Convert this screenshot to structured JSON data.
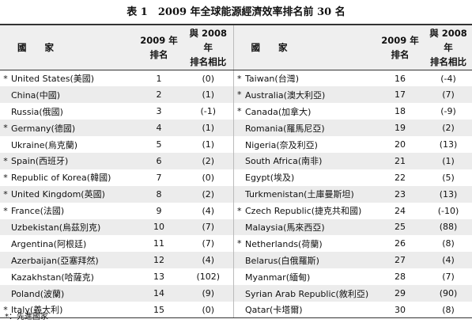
{
  "title": "表 1　2009 年全球能源經濟效率排名前 30 名",
  "table": {
    "header": {
      "country": "國　　家",
      "rank": [
        "2009 年",
        "排名"
      ],
      "change": [
        "與 2008 年",
        "排名相比"
      ]
    },
    "left": [
      {
        "mark": "*",
        "country": "United States(美國)",
        "rank": 1,
        "change": "(0)"
      },
      {
        "country": "China(中國)",
        "rank": 2,
        "change": "(1)"
      },
      {
        "country": "Russia(俄國)",
        "rank": 3,
        "change": "(-1)"
      },
      {
        "mark": "*",
        "country": "Germany(德國)",
        "rank": 4,
        "change": "(1)"
      },
      {
        "country": "Ukraine(烏克蘭)",
        "rank": 5,
        "change": "(1)"
      },
      {
        "mark": "*",
        "country": "Spain(西班牙)",
        "rank": 6,
        "change": "(2)"
      },
      {
        "mark": "*",
        "country": "Republic of Korea(韓國)",
        "rank": 7,
        "change": "(0)"
      },
      {
        "mark": "*",
        "country": "United Kingdom(英國)",
        "rank": 8,
        "change": "(2)"
      },
      {
        "mark": "*",
        "country": "France(法國)",
        "rank": 9,
        "change": "(4)"
      },
      {
        "country": "Uzbekistan(烏茲別克)",
        "rank": 10,
        "change": "(7)"
      },
      {
        "country": "Argentina(阿根廷)",
        "rank": 11,
        "change": "(7)"
      },
      {
        "country": "Azerbaijan(亞塞拜然)",
        "rank": 12,
        "change": "(4)"
      },
      {
        "country": "Kazakhstan(哈薩克)",
        "rank": 13,
        "change": "(102)"
      },
      {
        "country": "Poland(波蘭)",
        "rank": 14,
        "change": "(9)"
      },
      {
        "mark": "*",
        "country": "Italy(義大利)",
        "rank": 15,
        "change": "(0)"
      }
    ],
    "right": [
      {
        "mark": "*",
        "country": "Taiwan(台灣)",
        "rank": 16,
        "change": "(-4)"
      },
      {
        "mark": "*",
        "country": "Australia(澳大利亞)",
        "rank": 17,
        "change": "(7)"
      },
      {
        "mark": "*",
        "country": "Canada(加拿大)",
        "rank": 18,
        "change": "(-9)"
      },
      {
        "country": "Romania(羅馬尼亞)",
        "rank": 19,
        "change": "(2)"
      },
      {
        "country": "Nigeria(奈及利亞)",
        "rank": 20,
        "change": "(13)"
      },
      {
        "country": "South Africa(南非)",
        "rank": 21,
        "change": "(1)"
      },
      {
        "country": "Egypt(埃及)",
        "rank": 22,
        "change": "(5)"
      },
      {
        "country": "Turkmenistan(土庫曼斯坦)",
        "rank": 23,
        "change": "(13)"
      },
      {
        "mark": "*",
        "country": "Czech Republic(捷克共和國)",
        "rank": 24,
        "change": "(-10)"
      },
      {
        "country": "Malaysia(馬來西亞)",
        "rank": 25,
        "change": "(88)"
      },
      {
        "mark": "*",
        "country": "Netherlands(荷蘭)",
        "rank": 26,
        "change": "(8)"
      },
      {
        "country": "Belarus(白俄羅斯)",
        "rank": 27,
        "change": "(4)"
      },
      {
        "country": "Myanmar(緬甸)",
        "rank": 28,
        "change": "(7)"
      },
      {
        "country": "Syrian Arab Republic(敘利亞)",
        "rank": 29,
        "change": "(90)"
      },
      {
        "country": "Qatar(卡塔爾)",
        "rank": 30,
        "change": "(8)"
      }
    ]
  },
  "footnote": "*：先進國家"
}
